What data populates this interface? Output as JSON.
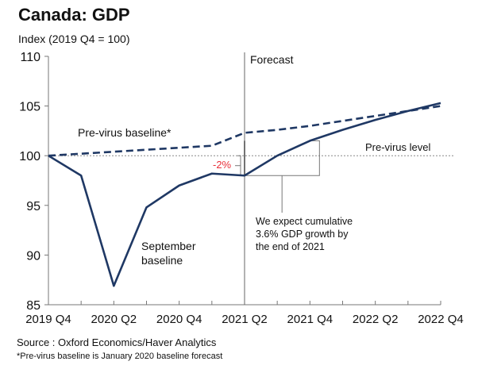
{
  "chart_data": {
    "type": "line",
    "title": "Canada: GDP",
    "ylabel": "Index (2019 Q4 = 100)",
    "xlabel": "",
    "ylim": [
      85,
      110
    ],
    "yticks": [
      85,
      90,
      95,
      100,
      105,
      110
    ],
    "x": [
      "2019 Q4",
      "2020 Q1",
      "2020 Q2",
      "2020 Q3",
      "2020 Q4",
      "2021 Q1",
      "2021 Q2",
      "2021 Q3",
      "2021 Q4",
      "2022 Q1",
      "2022 Q2",
      "2022 Q3",
      "2022 Q4"
    ],
    "xtick_labels": [
      "2019 Q4",
      "2020 Q2",
      "2020 Q4",
      "2021 Q2",
      "2021 Q4",
      "2022 Q2",
      "2022 Q4"
    ],
    "grid": false,
    "series": [
      {
        "name": "September baseline",
        "style": "solid",
        "color": "#1f3864",
        "values": [
          100,
          98.0,
          86.9,
          94.8,
          97.0,
          98.2,
          98.0,
          100.0,
          101.5,
          102.6,
          103.6,
          104.5,
          105.3
        ]
      },
      {
        "name": "Pre-virus baseline*",
        "style": "dashed",
        "color": "#1f3864",
        "values": [
          100,
          100.2,
          100.4,
          100.6,
          100.8,
          101.0,
          102.3,
          102.6,
          103.0,
          103.5,
          104.0,
          104.5,
          105.0
        ]
      }
    ],
    "reference_lines": [
      {
        "type": "horizontal",
        "value": 100,
        "label": "Pre-virus level",
        "style": "dotted"
      },
      {
        "type": "vertical",
        "at": "2021 Q2",
        "label": "Forecast"
      }
    ],
    "annotations": [
      {
        "text": "-2%",
        "color": "#e8303a",
        "at": "2021 Q2"
      },
      {
        "text_lines": [
          "We expect cumulative",
          "3.6% GDP growth by",
          "the end of 2021"
        ]
      },
      {
        "text_lines": [
          "September",
          "baseline"
        ]
      },
      {
        "text": "Pre-virus baseline*"
      }
    ]
  },
  "header": {
    "title": "Canada: GDP",
    "subtitle": "Index (2019 Q4 = 100)"
  },
  "labels": {
    "forecast": "Forecast",
    "previrus_level": "Pre-virus level",
    "previrus_baseline": "Pre-virus baseline*",
    "sept_1": "September",
    "sept_2": "baseline",
    "gap": "-2%",
    "expect_1": "We expect cumulative",
    "expect_2": "3.6% GDP growth by",
    "expect_3": "the end of 2021"
  },
  "footer": {
    "source": "Source : Oxford Economics/Haver Analytics",
    "note": "*Pre-virus baseline is January 2020 baseline forecast"
  },
  "colors": {
    "line": "#1f3864",
    "axis": "#777777",
    "annotation_red": "#e8303a"
  }
}
